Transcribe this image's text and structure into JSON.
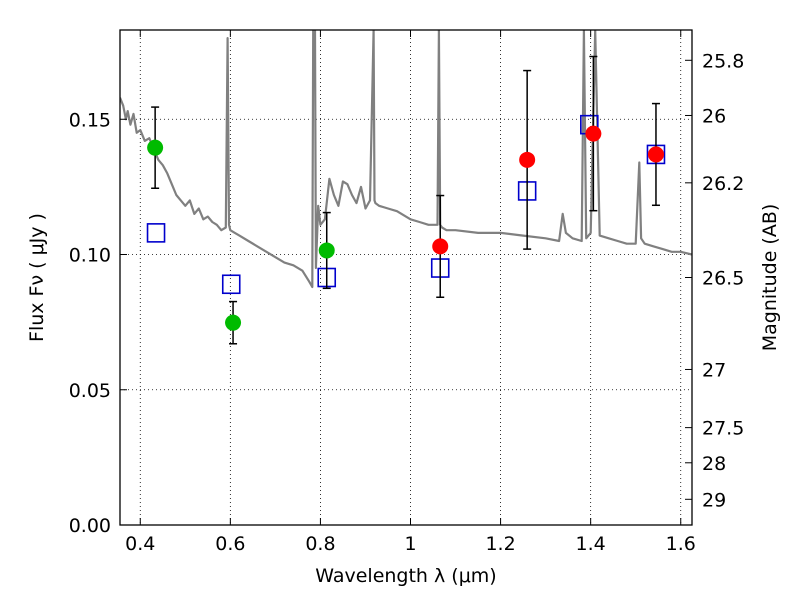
{
  "chart_data": {
    "type": "scatter",
    "xlabel": "Wavelength  λ (μm)",
    "ylabel": "Flux  Fν ( μJy )",
    "y2label": "Magnitude (AB)",
    "xlim": [
      0.355,
      1.625
    ],
    "ylim": [
      0.0,
      0.183
    ],
    "x_ticks": [
      0.4,
      0.6,
      0.8,
      1.0,
      1.2,
      1.4,
      1.6
    ],
    "x_tick_labels": [
      "0.4",
      "0.6",
      "0.8",
      "1",
      "1.2",
      "1.4",
      "1.6"
    ],
    "y_ticks": [
      0.0,
      0.05,
      0.1,
      0.15
    ],
    "y_tick_labels": [
      "0.00",
      "0.05",
      "0.10",
      "0.15"
    ],
    "y2_ticks": [
      {
        "label": "25.8",
        "flux": 0.1718
      },
      {
        "label": "26",
        "flux": 0.1514
      },
      {
        "label": "26.2",
        "flux": 0.1265
      },
      {
        "label": "26.5",
        "flux": 0.0915
      },
      {
        "label": "27",
        "flux": 0.0575
      },
      {
        "label": "27.5",
        "flux": 0.036
      },
      {
        "label": "28",
        "flux": 0.023
      },
      {
        "label": "29",
        "flux": 0.0095
      }
    ],
    "grid": true,
    "colors": {
      "template": "#808080",
      "green": "#00bb00",
      "red": "#ff0000",
      "model_box": "#0000cc",
      "errorbar": "#000000"
    },
    "template_spectrum": {
      "x": [
        0.355,
        0.362,
        0.368,
        0.372,
        0.378,
        0.385,
        0.392,
        0.4,
        0.41,
        0.42,
        0.43,
        0.44,
        0.45,
        0.46,
        0.47,
        0.48,
        0.49,
        0.5,
        0.51,
        0.52,
        0.53,
        0.54,
        0.55,
        0.56,
        0.57,
        0.58,
        0.59,
        0.594,
        0.597,
        0.6,
        0.61,
        0.62,
        0.64,
        0.66,
        0.68,
        0.7,
        0.72,
        0.74,
        0.76,
        0.775,
        0.782,
        0.784,
        0.788,
        0.79,
        0.795,
        0.8,
        0.81,
        0.82,
        0.83,
        0.84,
        0.85,
        0.86,
        0.87,
        0.88,
        0.89,
        0.9,
        0.91,
        0.918,
        0.92,
        0.922,
        0.93,
        0.95,
        0.97,
        1.0,
        1.02,
        1.04,
        1.06,
        1.063,
        1.066,
        1.07,
        1.08,
        1.1,
        1.15,
        1.2,
        1.25,
        1.3,
        1.33,
        1.338,
        1.345,
        1.36,
        1.38,
        1.385,
        1.39,
        1.4,
        1.41,
        1.42,
        1.44,
        1.46,
        1.48,
        1.5,
        1.508,
        1.512,
        1.52,
        1.54,
        1.56,
        1.58,
        1.6,
        1.625
      ],
      "y": [
        0.158,
        0.155,
        0.15,
        0.153,
        0.148,
        0.152,
        0.145,
        0.146,
        0.142,
        0.143,
        0.139,
        0.135,
        0.133,
        0.13,
        0.126,
        0.122,
        0.12,
        0.118,
        0.12,
        0.115,
        0.117,
        0.113,
        0.114,
        0.112,
        0.111,
        0.109,
        0.11,
        0.18,
        0.111,
        0.109,
        0.108,
        0.107,
        0.105,
        0.103,
        0.101,
        0.099,
        0.097,
        0.096,
        0.094,
        0.09,
        0.088,
        0.183,
        0.183,
        0.095,
        0.118,
        0.111,
        0.113,
        0.128,
        0.122,
        0.118,
        0.127,
        0.126,
        0.122,
        0.119,
        0.125,
        0.117,
        0.12,
        0.183,
        0.12,
        0.119,
        0.118,
        0.117,
        0.116,
        0.113,
        0.112,
        0.111,
        0.111,
        0.183,
        0.111,
        0.11,
        0.109,
        0.109,
        0.108,
        0.108,
        0.107,
        0.106,
        0.105,
        0.115,
        0.108,
        0.106,
        0.105,
        0.183,
        0.106,
        0.108,
        0.183,
        0.107,
        0.106,
        0.105,
        0.104,
        0.104,
        0.134,
        0.106,
        0.104,
        0.103,
        0.102,
        0.101,
        0.101,
        0.1
      ]
    },
    "series": [
      {
        "marker": "circle",
        "color": "green",
        "points": [
          {
            "x": 0.433,
            "y": 0.1395,
            "err": 0.015
          },
          {
            "x": 0.606,
            "y": 0.0748,
            "err": 0.0078
          },
          {
            "x": 0.814,
            "y": 0.1015,
            "err": 0.014
          }
        ]
      },
      {
        "marker": "circle",
        "color": "red",
        "points": [
          {
            "x": 1.066,
            "y": 0.103,
            "err": 0.0188
          },
          {
            "x": 1.259,
            "y": 0.135,
            "err": 0.033
          },
          {
            "x": 1.406,
            "y": 0.1447,
            "err": 0.0285
          },
          {
            "x": 1.545,
            "y": 0.137,
            "err": 0.0188
          }
        ]
      },
      {
        "marker": "square",
        "color": "model_box",
        "points": [
          {
            "x": 0.435,
            "y": 0.108
          },
          {
            "x": 0.602,
            "y": 0.089
          },
          {
            "x": 0.814,
            "y": 0.0915
          },
          {
            "x": 1.066,
            "y": 0.095
          },
          {
            "x": 1.259,
            "y": 0.1235
          },
          {
            "x": 1.397,
            "y": 0.148
          },
          {
            "x": 1.545,
            "y": 0.137
          }
        ]
      }
    ]
  }
}
